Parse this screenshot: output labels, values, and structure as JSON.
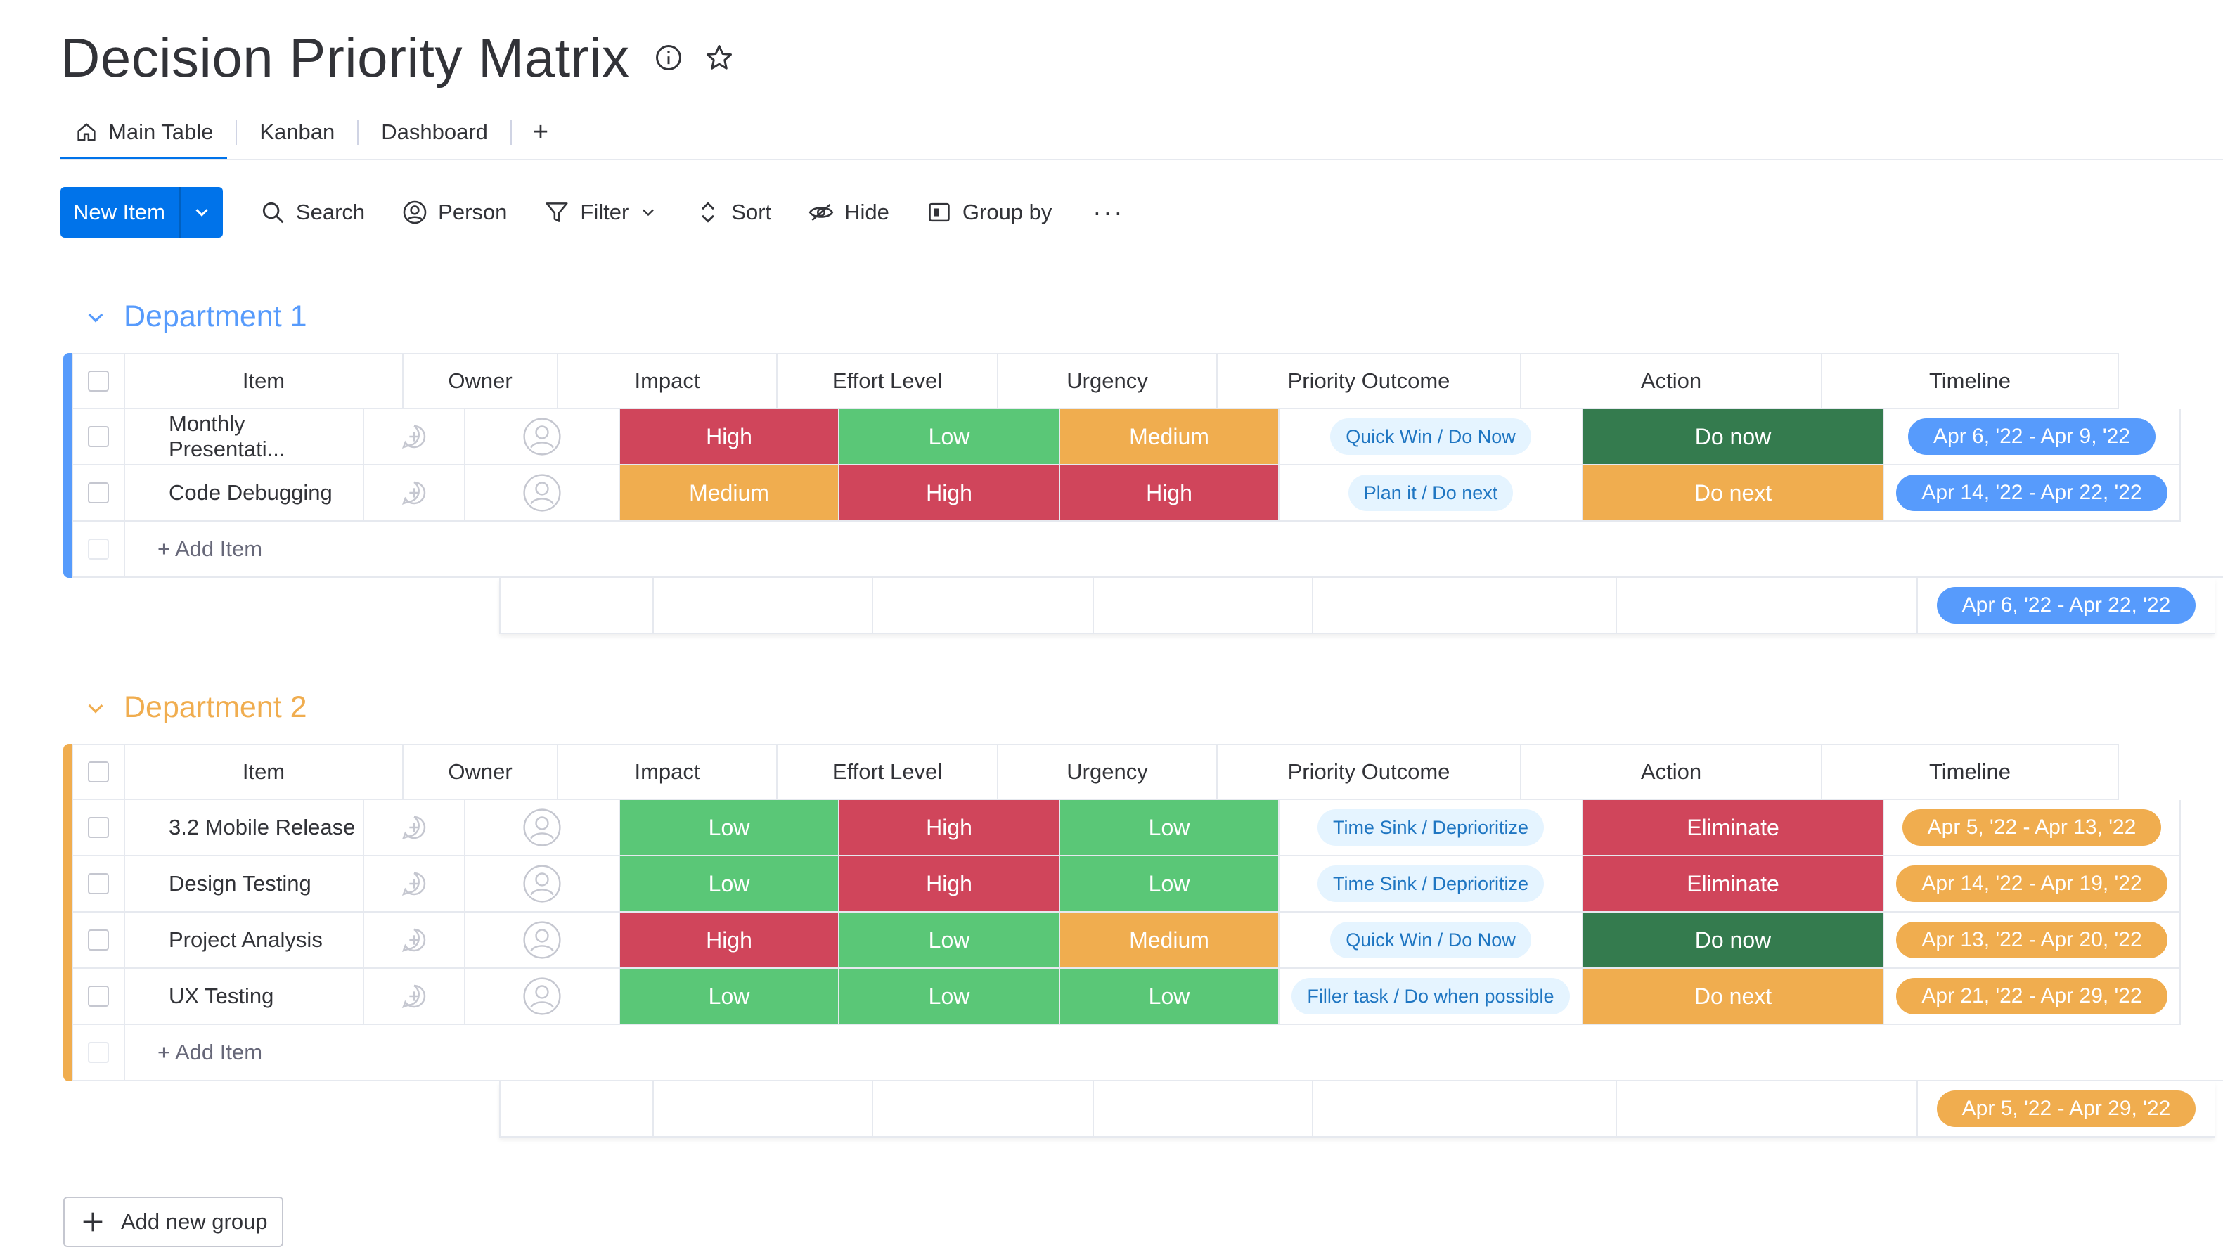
{
  "header": {
    "title": "Decision Priority Matrix",
    "info_icon": "info-icon",
    "star_icon": "star-icon"
  },
  "tabs": [
    {
      "label": "Main Table",
      "icon": "home-icon",
      "active": true
    },
    {
      "label": "Kanban"
    },
    {
      "label": "Dashboard"
    },
    {
      "label": "+"
    }
  ],
  "toolbar": {
    "new_item": "New Item",
    "search": "Search",
    "person": "Person",
    "filter": "Filter",
    "sort": "Sort",
    "hide": "Hide",
    "group_by": "Group by",
    "more": "···"
  },
  "columns": {
    "item": "Item",
    "owner": "Owner",
    "impact": "Impact",
    "effort": "Effort Level",
    "urgency": "Urgency",
    "priority": "Priority Outcome",
    "action": "Action",
    "timeline": "Timeline"
  },
  "colors": {
    "high": "#d0455b",
    "medium": "#f0ad4f",
    "low": "#5ac777",
    "do_now": "#347b4e",
    "do_next": "#f0ad4f",
    "eliminate": "#d0455b",
    "group1": "#579bfc",
    "group2": "#f0ad4f",
    "primary": "#0073ea"
  },
  "groups": [
    {
      "title": "Department 1",
      "rows": [
        {
          "item": "Monthly Presentati...",
          "impact": "High",
          "effort": "Low",
          "urgency": "Medium",
          "priority": "Quick Win / Do Now",
          "action": "Do now",
          "timeline": "Apr 6, '22 - Apr 9, '22"
        },
        {
          "item": "Code Debugging",
          "impact": "Medium",
          "effort": "High",
          "urgency": "High",
          "priority": "Plan it / Do next",
          "action": "Do next",
          "timeline": "Apr 14, '22 - Apr 22, '22"
        }
      ],
      "add_item": "+ Add Item",
      "summary_timeline": "Apr 6, '22 - Apr 22, '22"
    },
    {
      "title": "Department 2",
      "rows": [
        {
          "item": "3.2 Mobile Release",
          "impact": "Low",
          "effort": "High",
          "urgency": "Low",
          "priority": "Time Sink / Deprioritize",
          "action": "Eliminate",
          "timeline": "Apr 5, '22 - Apr 13, '22"
        },
        {
          "item": "Design Testing",
          "impact": "Low",
          "effort": "High",
          "urgency": "Low",
          "priority": "Time Sink / Deprioritize",
          "action": "Eliminate",
          "timeline": "Apr 14, '22 - Apr 19, '22"
        },
        {
          "item": "Project Analysis",
          "impact": "High",
          "effort": "Low",
          "urgency": "Medium",
          "priority": "Quick Win / Do Now",
          "action": "Do now",
          "timeline": "Apr 13, '22 - Apr 20, '22"
        },
        {
          "item": "UX Testing",
          "impact": "Low",
          "effort": "Low",
          "urgency": "Low",
          "priority": "Filler task / Do when possible",
          "action": "Do next",
          "timeline": "Apr 21, '22 - Apr 29, '22"
        }
      ],
      "add_item": "+ Add Item",
      "summary_timeline": "Apr 5, '22 - Apr 29, '22"
    }
  ],
  "add_group": "Add new group"
}
